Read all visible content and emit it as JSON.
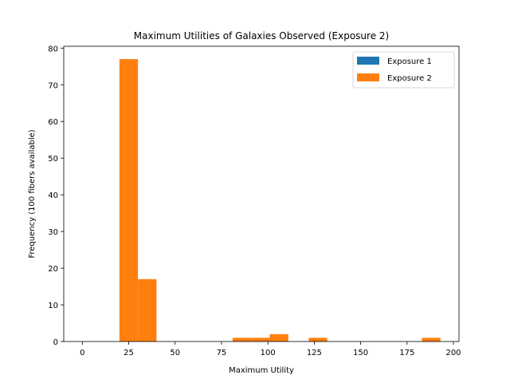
{
  "chart_data": {
    "type": "bar",
    "title": "Maximum Utilities of Galaxies Observed (Exposure 2)",
    "xlabel": "Maximum Utility",
    "ylabel": "Frequency (100 fibers available)",
    "xlim": [
      -10,
      203
    ],
    "ylim": [
      0,
      80.5
    ],
    "xticks": [
      0,
      25,
      50,
      75,
      100,
      125,
      150,
      175,
      200
    ],
    "yticks": [
      0,
      10,
      20,
      30,
      40,
      50,
      60,
      70,
      80
    ],
    "grid": false,
    "legend_position": "top-right",
    "series": [
      {
        "name": "Exposure 1",
        "color": "#1f77b4",
        "bins": []
      },
      {
        "name": "Exposure 2",
        "color": "#ff7f0e",
        "bins": [
          {
            "x0": 20,
            "x1": 30,
            "value": 77
          },
          {
            "x0": 30,
            "x1": 40,
            "value": 17
          },
          {
            "x0": 81,
            "x1": 91,
            "value": 1
          },
          {
            "x0": 91,
            "x1": 101,
            "value": 1
          },
          {
            "x0": 101,
            "x1": 111,
            "value": 2
          },
          {
            "x0": 122,
            "x1": 132,
            "value": 1
          },
          {
            "x0": 183,
            "x1": 193,
            "value": 1
          }
        ]
      }
    ]
  }
}
